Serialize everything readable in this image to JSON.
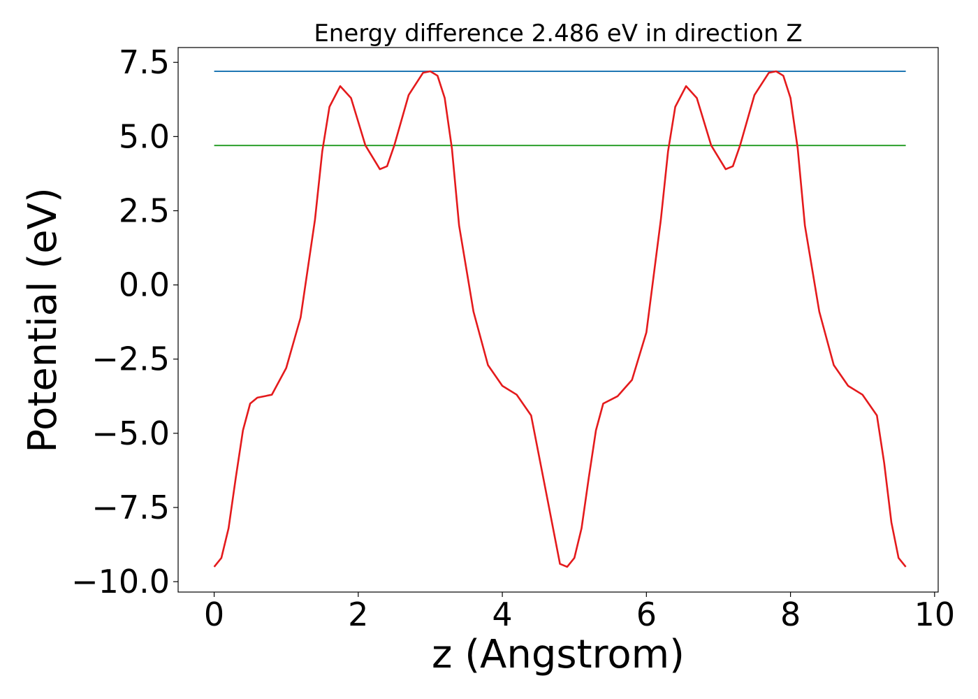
{
  "chart_data": {
    "type": "line",
    "title": "Energy difference 2.486 eV in direction Z",
    "xlabel": "z (Angstrom)",
    "ylabel": "Potential (eV)",
    "xlim": [
      -0.5,
      10.05
    ],
    "ylim": [
      -10.35,
      8.0
    ],
    "xticks": [
      0,
      2,
      4,
      6,
      8,
      10
    ],
    "xtick_labels": [
      "0",
      "2",
      "4",
      "6",
      "8",
      "10"
    ],
    "yticks": [
      7.5,
      5.0,
      2.5,
      0.0,
      -2.5,
      -5.0,
      -7.5,
      -10.0
    ],
    "ytick_labels": [
      "7.5",
      "5.0",
      "2.5",
      "0.0",
      "−2.5",
      "−5.0",
      "−7.5",
      "−10.0"
    ],
    "grid": false,
    "series": [
      {
        "color": "#1f77b4",
        "x": [
          0.0,
          9.6
        ],
        "y": [
          7.2,
          7.2
        ]
      },
      {
        "color": "#2ca02c",
        "x": [
          0.0,
          9.6
        ],
        "y": [
          4.7,
          4.7
        ]
      },
      {
        "color": "#e41a1c",
        "x": [
          0.0,
          0.1,
          0.2,
          0.3,
          0.4,
          0.5,
          0.6,
          0.8,
          1.0,
          1.2,
          1.4,
          1.5,
          1.6,
          1.75,
          1.9,
          2.1,
          2.3,
          2.4,
          2.5,
          2.7,
          2.9,
          3.0,
          3.1,
          3.2,
          3.3,
          3.4,
          3.6,
          3.8,
          4.0,
          4.2,
          4.4,
          4.6,
          4.8,
          4.9,
          5.0,
          5.1,
          5.2,
          5.3,
          5.4,
          5.6,
          5.8,
          6.0,
          6.2,
          6.3,
          6.4,
          6.55,
          6.7,
          6.9,
          7.1,
          7.2,
          7.3,
          7.5,
          7.7,
          7.8,
          7.9,
          8.0,
          8.1,
          8.2,
          8.4,
          8.6,
          8.8,
          9.0,
          9.2,
          9.3,
          9.4,
          9.5,
          9.6
        ],
        "y": [
          -9.5,
          -9.2,
          -8.2,
          -6.5,
          -4.9,
          -4.0,
          -3.8,
          -3.7,
          -2.8,
          -1.1,
          2.2,
          4.5,
          6.0,
          6.7,
          6.3,
          4.7,
          3.9,
          4.0,
          4.7,
          6.4,
          7.15,
          7.2,
          7.05,
          6.3,
          4.6,
          2.0,
          -0.9,
          -2.7,
          -3.4,
          -3.7,
          -4.4,
          -6.9,
          -9.4,
          -9.5,
          -9.2,
          -8.2,
          -6.5,
          -4.9,
          -4.0,
          -3.75,
          -3.2,
          -1.6,
          2.2,
          4.5,
          6.0,
          6.7,
          6.3,
          4.7,
          3.9,
          4.0,
          4.7,
          6.4,
          7.15,
          7.2,
          7.05,
          6.3,
          4.6,
          2.0,
          -0.9,
          -2.7,
          -3.4,
          -3.7,
          -4.4,
          -6.0,
          -8.0,
          -9.2,
          -9.5
        ]
      }
    ]
  }
}
